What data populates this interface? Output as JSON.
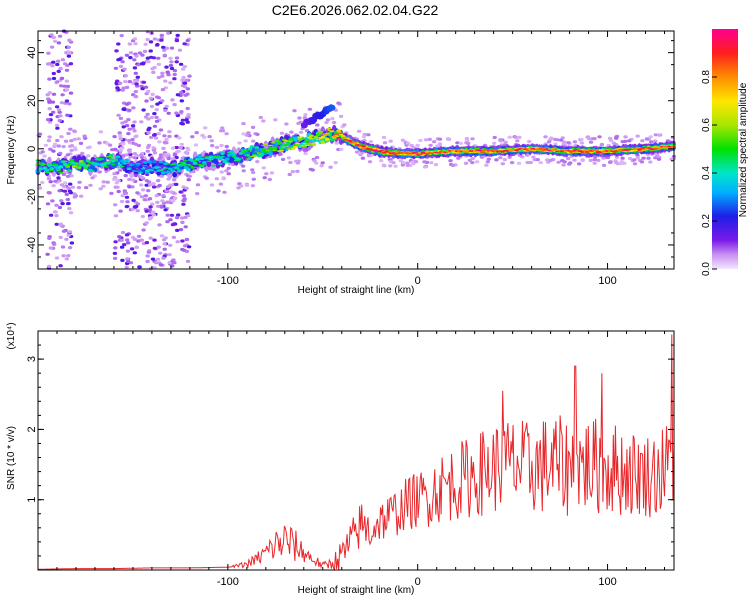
{
  "figure_title": "C2E6.2026.062.02.04.G22",
  "chart_data": [
    {
      "type": "heatmap",
      "title": "C2E6.2026.062.02.04.G22",
      "xlabel": "Height of straight line (km)",
      "ylabel": "Frequency (Hz)",
      "xlim": [
        -200,
        135
      ],
      "ylim": [
        -50,
        49
      ],
      "xticks": [
        -100,
        0,
        100
      ],
      "xtick_labels": [
        "-100",
        "0",
        "100"
      ],
      "yticks": [
        -40,
        -20,
        0,
        20,
        40
      ],
      "ytick_labels": [
        "-40",
        "-20",
        "0",
        "20",
        "40"
      ],
      "colorbar": {
        "label": "Normalized spectral amplitude",
        "range": [
          0,
          1
        ],
        "ticks": [
          0.0,
          0.2,
          0.4,
          0.6,
          0.8
        ],
        "tick_labels": [
          "0.0",
          "0.2",
          "0.4",
          "0.6",
          "0.8"
        ]
      },
      "ridge": {
        "description": "dominant frequency trace",
        "x": [
          -200,
          -190,
          -180,
          -170,
          -160,
          -150,
          -140,
          -130,
          -120,
          -110,
          -100,
          -90,
          -80,
          -70,
          -60,
          -50,
          -45,
          -40,
          -35,
          -30,
          -20,
          -10,
          0,
          20,
          40,
          60,
          80,
          100,
          120,
          135
        ],
        "y": [
          -7,
          -8,
          -6,
          -7,
          -5,
          -8,
          -7,
          -9,
          -6,
          -5,
          -4,
          -2,
          0,
          2,
          3,
          5,
          6,
          5,
          3,
          1,
          -1,
          -2,
          -2,
          -1,
          -1,
          0,
          -1,
          -1,
          0,
          1
        ],
        "amplitude": [
          0.55,
          0.5,
          0.6,
          0.5,
          0.55,
          0.35,
          0.4,
          0.45,
          0.5,
          0.5,
          0.45,
          0.55,
          0.6,
          0.65,
          0.7,
          0.75,
          0.9,
          0.95,
          0.9,
          0.95,
          1.0,
          0.95,
          0.95,
          0.9,
          0.95,
          0.9,
          0.95,
          0.9,
          0.95,
          0.9
        ]
      },
      "secondary_feature": {
        "x": [
          -60,
          -45
        ],
        "y": [
          10,
          17
        ]
      },
      "noise_bands_x": [
        [
          -160,
          -120
        ],
        [
          -195,
          -182
        ]
      ]
    },
    {
      "type": "line",
      "xlabel": "Height of straight line (km)",
      "ylabel": "SNR (10 * v/v)",
      "scale_label": "(x10⁴)",
      "xlim": [
        -200,
        135
      ],
      "ylim": [
        0,
        3.4
      ],
      "xticks": [
        -100,
        0,
        100
      ],
      "xtick_labels": [
        "-100",
        "0",
        "100"
      ],
      "yticks": [
        1,
        2,
        3
      ],
      "ytick_labels": [
        "1",
        "2",
        "3"
      ],
      "series": [
        {
          "name": "SNR",
          "color": "#e8272b",
          "x": [
            -200,
            -180,
            -160,
            -140,
            -120,
            -100,
            -90,
            -85,
            -80,
            -75,
            -70,
            -65,
            -60,
            -55,
            -50,
            -45,
            -40,
            -35,
            -30,
            -25,
            -20,
            -15,
            -10,
            -5,
            0,
            5,
            10,
            20,
            30,
            40,
            50,
            60,
            70,
            80,
            90,
            100,
            110,
            120,
            130,
            135
          ],
          "values": [
            0.01,
            0.02,
            0.02,
            0.03,
            0.03,
            0.04,
            0.08,
            0.15,
            0.25,
            0.35,
            0.42,
            0.35,
            0.25,
            0.15,
            0.06,
            0.1,
            0.2,
            0.4,
            0.65,
            0.55,
            0.7,
            0.75,
            0.85,
            0.95,
            1.0,
            1.05,
            1.15,
            1.25,
            1.35,
            1.45,
            1.5,
            1.45,
            1.5,
            1.45,
            1.5,
            1.45,
            1.4,
            1.35,
            1.4,
            1.6
          ],
          "spread": [
            0,
            0,
            0,
            0,
            0,
            0,
            0.05,
            0.1,
            0.15,
            0.25,
            0.3,
            0.25,
            0.15,
            0.1,
            0.05,
            0.1,
            0.25,
            0.3,
            0.35,
            0.3,
            0.3,
            0.35,
            0.35,
            0.4,
            0.4,
            0.45,
            0.5,
            0.55,
            0.6,
            0.65,
            0.7,
            0.65,
            0.75,
            0.7,
            0.7,
            0.7,
            0.65,
            0.6,
            0.7,
            0.7
          ],
          "peaks": [
            {
              "x": 45,
              "y": 2.55
            },
            {
              "x": 83,
              "y": 2.9
            },
            {
              "x": 97,
              "y": 2.8
            },
            {
              "x": 134,
              "y": 3.35
            }
          ]
        }
      ]
    }
  ]
}
